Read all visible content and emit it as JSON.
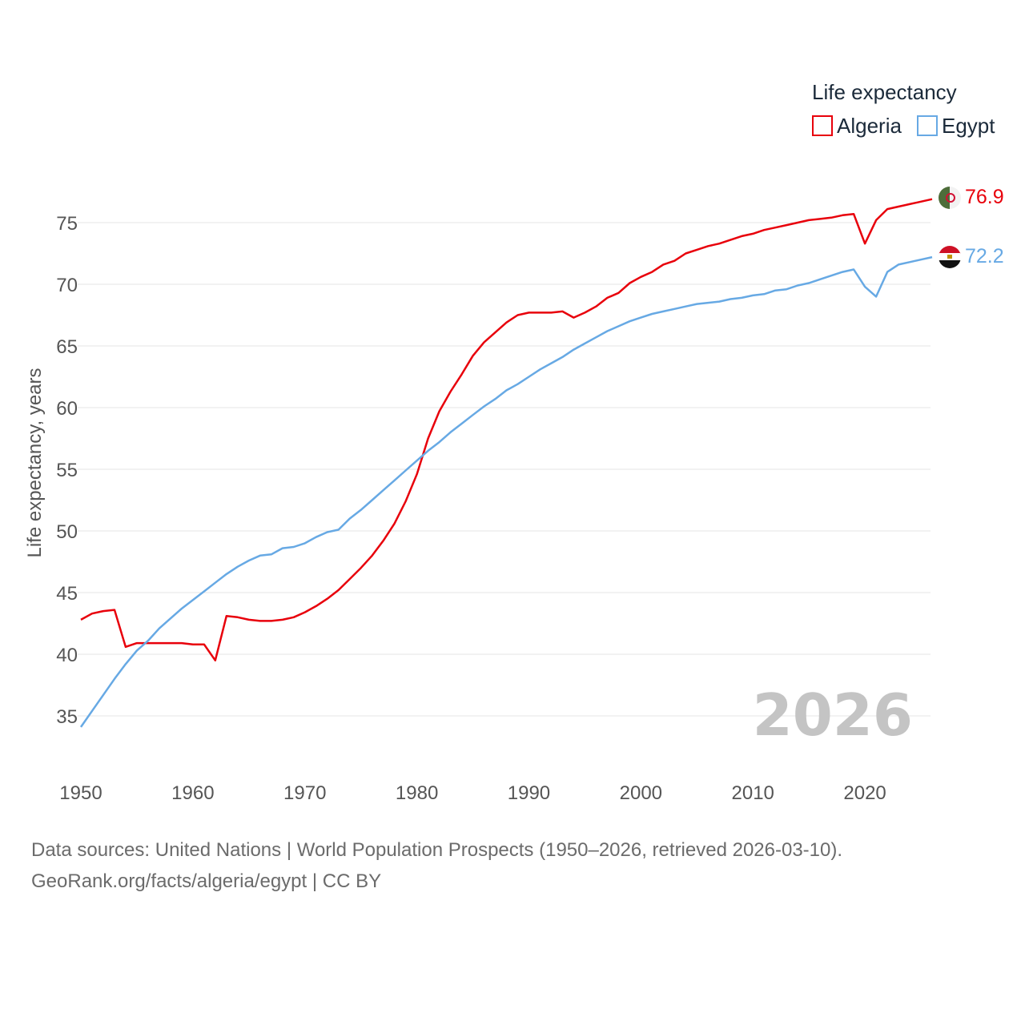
{
  "chart_data": {
    "type": "line",
    "legend": {
      "title": "Life expectancy",
      "placement": "top-right"
    },
    "ylabel": "Life expectancy, years",
    "xlim": [
      1950,
      2026
    ],
    "ylim": [
      32,
      78.5
    ],
    "xticks": [
      1950,
      1960,
      1970,
      1980,
      1990,
      2000,
      2010,
      2020
    ],
    "yticks": [
      35,
      40,
      45,
      50,
      55,
      60,
      65,
      70,
      75
    ],
    "grid": true,
    "year_label": "2026",
    "series": [
      {
        "name": "Algeria",
        "color": "#e8000b",
        "end_label": "76.9",
        "points": [
          [
            1950,
            42.8
          ],
          [
            1951,
            43.3
          ],
          [
            1952,
            43.5
          ],
          [
            1953,
            43.6
          ],
          [
            1954,
            40.6
          ],
          [
            1955,
            40.9
          ],
          [
            1956,
            40.9
          ],
          [
            1957,
            40.9
          ],
          [
            1958,
            40.9
          ],
          [
            1959,
            40.9
          ],
          [
            1960,
            40.8
          ],
          [
            1961,
            40.8
          ],
          [
            1962,
            39.5
          ],
          [
            1963,
            43.1
          ],
          [
            1964,
            43.0
          ],
          [
            1965,
            42.8
          ],
          [
            1966,
            42.7
          ],
          [
            1967,
            42.7
          ],
          [
            1968,
            42.8
          ],
          [
            1969,
            43.0
          ],
          [
            1970,
            43.4
          ],
          [
            1971,
            43.9
          ],
          [
            1972,
            44.5
          ],
          [
            1973,
            45.2
          ],
          [
            1974,
            46.1
          ],
          [
            1975,
            47.0
          ],
          [
            1976,
            48.0
          ],
          [
            1977,
            49.2
          ],
          [
            1978,
            50.6
          ],
          [
            1979,
            52.4
          ],
          [
            1980,
            54.6
          ],
          [
            1981,
            57.5
          ],
          [
            1982,
            59.7
          ],
          [
            1983,
            61.3
          ],
          [
            1984,
            62.7
          ],
          [
            1985,
            64.2
          ],
          [
            1986,
            65.3
          ],
          [
            1987,
            66.1
          ],
          [
            1988,
            66.9
          ],
          [
            1989,
            67.5
          ],
          [
            1990,
            67.7
          ],
          [
            1991,
            67.7
          ],
          [
            1992,
            67.7
          ],
          [
            1993,
            67.8
          ],
          [
            1994,
            67.3
          ],
          [
            1995,
            67.7
          ],
          [
            1996,
            68.2
          ],
          [
            1997,
            68.9
          ],
          [
            1998,
            69.3
          ],
          [
            1999,
            70.1
          ],
          [
            2000,
            70.6
          ],
          [
            2001,
            71.0
          ],
          [
            2002,
            71.6
          ],
          [
            2003,
            71.9
          ],
          [
            2004,
            72.5
          ],
          [
            2005,
            72.8
          ],
          [
            2006,
            73.1
          ],
          [
            2007,
            73.3
          ],
          [
            2008,
            73.6
          ],
          [
            2009,
            73.9
          ],
          [
            2010,
            74.1
          ],
          [
            2011,
            74.4
          ],
          [
            2012,
            74.6
          ],
          [
            2013,
            74.8
          ],
          [
            2014,
            75.0
          ],
          [
            2015,
            75.2
          ],
          [
            2016,
            75.3
          ],
          [
            2017,
            75.4
          ],
          [
            2018,
            75.6
          ],
          [
            2019,
            75.7
          ],
          [
            2020,
            73.3
          ],
          [
            2021,
            75.2
          ],
          [
            2022,
            76.1
          ],
          [
            2023,
            76.3
          ],
          [
            2024,
            76.5
          ],
          [
            2025,
            76.7
          ],
          [
            2026,
            76.9
          ]
        ]
      },
      {
        "name": "Egypt",
        "color": "#67a9e4",
        "end_label": "72.2",
        "points": [
          [
            1950,
            34.1
          ],
          [
            1951,
            35.4
          ],
          [
            1952,
            36.7
          ],
          [
            1953,
            38.0
          ],
          [
            1954,
            39.2
          ],
          [
            1955,
            40.3
          ],
          [
            1956,
            41.1
          ],
          [
            1957,
            42.1
          ],
          [
            1958,
            42.9
          ],
          [
            1959,
            43.7
          ],
          [
            1960,
            44.4
          ],
          [
            1961,
            45.1
          ],
          [
            1962,
            45.8
          ],
          [
            1963,
            46.5
          ],
          [
            1964,
            47.1
          ],
          [
            1965,
            47.6
          ],
          [
            1966,
            48.0
          ],
          [
            1967,
            48.1
          ],
          [
            1968,
            48.6
          ],
          [
            1969,
            48.7
          ],
          [
            1970,
            49.0
          ],
          [
            1971,
            49.5
          ],
          [
            1972,
            49.9
          ],
          [
            1973,
            50.1
          ],
          [
            1974,
            51.0
          ],
          [
            1975,
            51.7
          ],
          [
            1976,
            52.5
          ],
          [
            1977,
            53.3
          ],
          [
            1978,
            54.1
          ],
          [
            1979,
            54.9
          ],
          [
            1980,
            55.7
          ],
          [
            1981,
            56.5
          ],
          [
            1982,
            57.2
          ],
          [
            1983,
            58.0
          ],
          [
            1984,
            58.7
          ],
          [
            1985,
            59.4
          ],
          [
            1986,
            60.1
          ],
          [
            1987,
            60.7
          ],
          [
            1988,
            61.4
          ],
          [
            1989,
            61.9
          ],
          [
            1990,
            62.5
          ],
          [
            1991,
            63.1
          ],
          [
            1992,
            63.6
          ],
          [
            1993,
            64.1
          ],
          [
            1994,
            64.7
          ],
          [
            1995,
            65.2
          ],
          [
            1996,
            65.7
          ],
          [
            1997,
            66.2
          ],
          [
            1998,
            66.6
          ],
          [
            1999,
            67.0
          ],
          [
            2000,
            67.3
          ],
          [
            2001,
            67.6
          ],
          [
            2002,
            67.8
          ],
          [
            2003,
            68.0
          ],
          [
            2004,
            68.2
          ],
          [
            2005,
            68.4
          ],
          [
            2006,
            68.5
          ],
          [
            2007,
            68.6
          ],
          [
            2008,
            68.8
          ],
          [
            2009,
            68.9
          ],
          [
            2010,
            69.1
          ],
          [
            2011,
            69.2
          ],
          [
            2012,
            69.5
          ],
          [
            2013,
            69.6
          ],
          [
            2014,
            69.9
          ],
          [
            2015,
            70.1
          ],
          [
            2016,
            70.4
          ],
          [
            2017,
            70.7
          ],
          [
            2018,
            71.0
          ],
          [
            2019,
            71.2
          ],
          [
            2020,
            69.8
          ],
          [
            2021,
            69.0
          ],
          [
            2022,
            71.0
          ],
          [
            2023,
            71.6
          ],
          [
            2024,
            71.8
          ],
          [
            2025,
            72.0
          ],
          [
            2026,
            72.2
          ]
        ]
      }
    ]
  },
  "source": {
    "line1": "Data sources: United Nations | World Population Prospects (1950–2026, retrieved 2026-03-10).",
    "line2": "GeoRank.org/facts/algeria/egypt | CC BY"
  }
}
